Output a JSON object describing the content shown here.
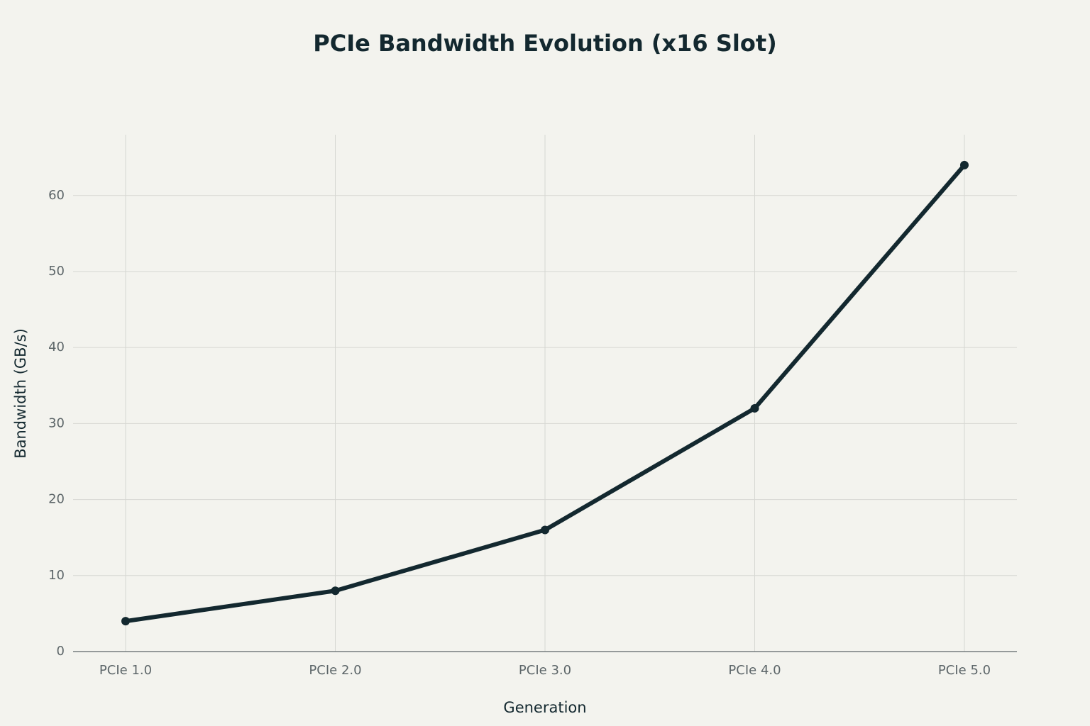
{
  "chart_data": {
    "type": "line",
    "title": "PCIe Bandwidth Evolution (x16 Slot)",
    "x_label": "Generation",
    "y_label": "Bandwidth (GB/s)",
    "categories": [
      "PCIe 1.0",
      "PCIe 2.0",
      "PCIe 3.0",
      "PCIe 4.0",
      "PCIe 5.0"
    ],
    "values": [
      4,
      8,
      16,
      32,
      64
    ],
    "color": "#13282f",
    "ylim": [
      0,
      68
    ],
    "yticks": [
      0,
      10,
      20,
      30,
      40,
      50,
      60
    ],
    "grid": true
  }
}
